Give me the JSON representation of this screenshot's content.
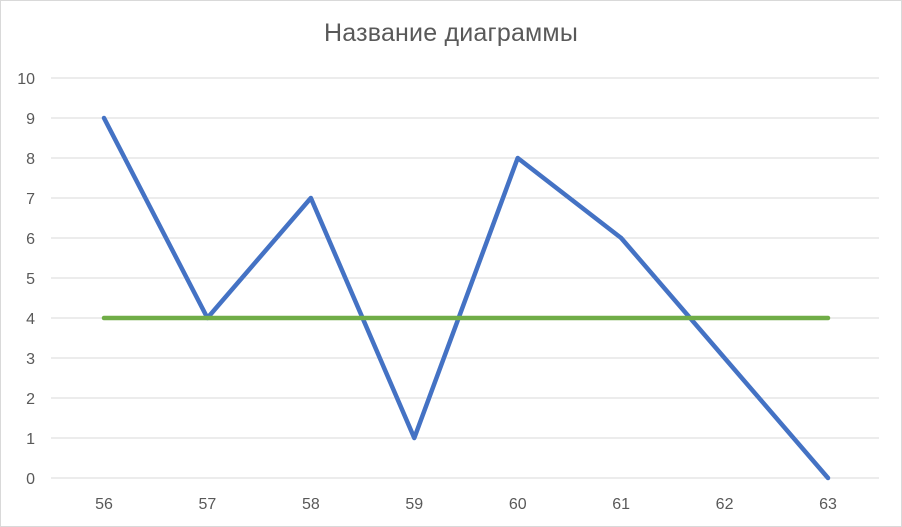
{
  "chart_data": {
    "type": "line",
    "title": "Название диаграммы",
    "categories": [
      "56",
      "57",
      "58",
      "59",
      "60",
      "61",
      "62",
      "63"
    ],
    "series": [
      {
        "values": [
          9,
          4,
          7,
          1,
          8,
          6,
          3,
          0
        ],
        "color": "#4472C4"
      },
      {
        "values": [
          4,
          4,
          4,
          4,
          4,
          4,
          4,
          4
        ],
        "color": "#70AD47"
      }
    ],
    "ylim": [
      0,
      10
    ],
    "yticks": [
      0,
      1,
      2,
      3,
      4,
      5,
      6,
      7,
      8,
      9,
      10
    ],
    "grid": true,
    "legend": "none",
    "gridline_color": "#d9d9d9"
  }
}
